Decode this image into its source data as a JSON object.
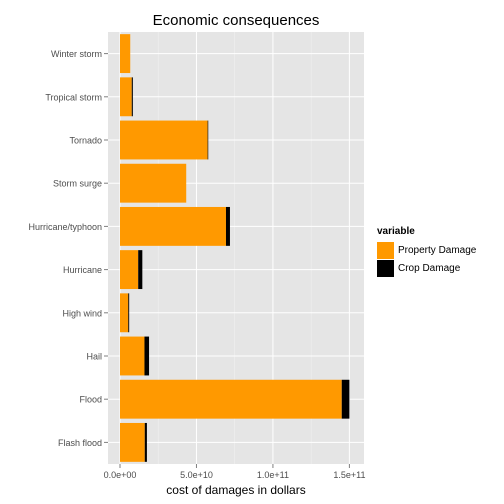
{
  "chart_data": {
    "type": "bar",
    "orientation": "horizontal",
    "stacked": true,
    "title": "Economic consequences",
    "xlabel": "cost of damages in dollars",
    "ylabel": "",
    "xlim": [
      0,
      150000000000
    ],
    "grid": true,
    "legend_position": "right",
    "categories": [
      "Flash flood",
      "Flood",
      "Hail",
      "High wind",
      "Hurricane",
      "Hurricane/typhoon",
      "Storm surge",
      "Tornado",
      "Tropical storm",
      "Winter storm"
    ],
    "series": [
      {
        "name": "Property Damage",
        "color": "#ff9900",
        "values": [
          16200000000,
          145000000000,
          16000000000,
          5400000000,
          11900000000,
          69300000000,
          43300000000,
          57300000000,
          7700000000,
          6700000000
        ]
      },
      {
        "name": "Crop Damage",
        "color": "#000000",
        "values": [
          1400000000,
          5000000000,
          3000000000,
          600000000,
          2700000000,
          2600000000,
          0,
          400000000,
          700000000,
          0
        ]
      }
    ],
    "x_ticks": [
      0,
      50000000000,
      100000000000,
      150000000000
    ],
    "x_tick_labels": [
      "0.0e+00",
      "5.0e+10",
      "1.0e+11",
      "1.5e+11"
    ]
  },
  "legend": {
    "title": "variable",
    "items": [
      {
        "label": "Property Damage",
        "color": "#ff9900"
      },
      {
        "label": "Crop Damage",
        "color": "#000000"
      }
    ]
  }
}
